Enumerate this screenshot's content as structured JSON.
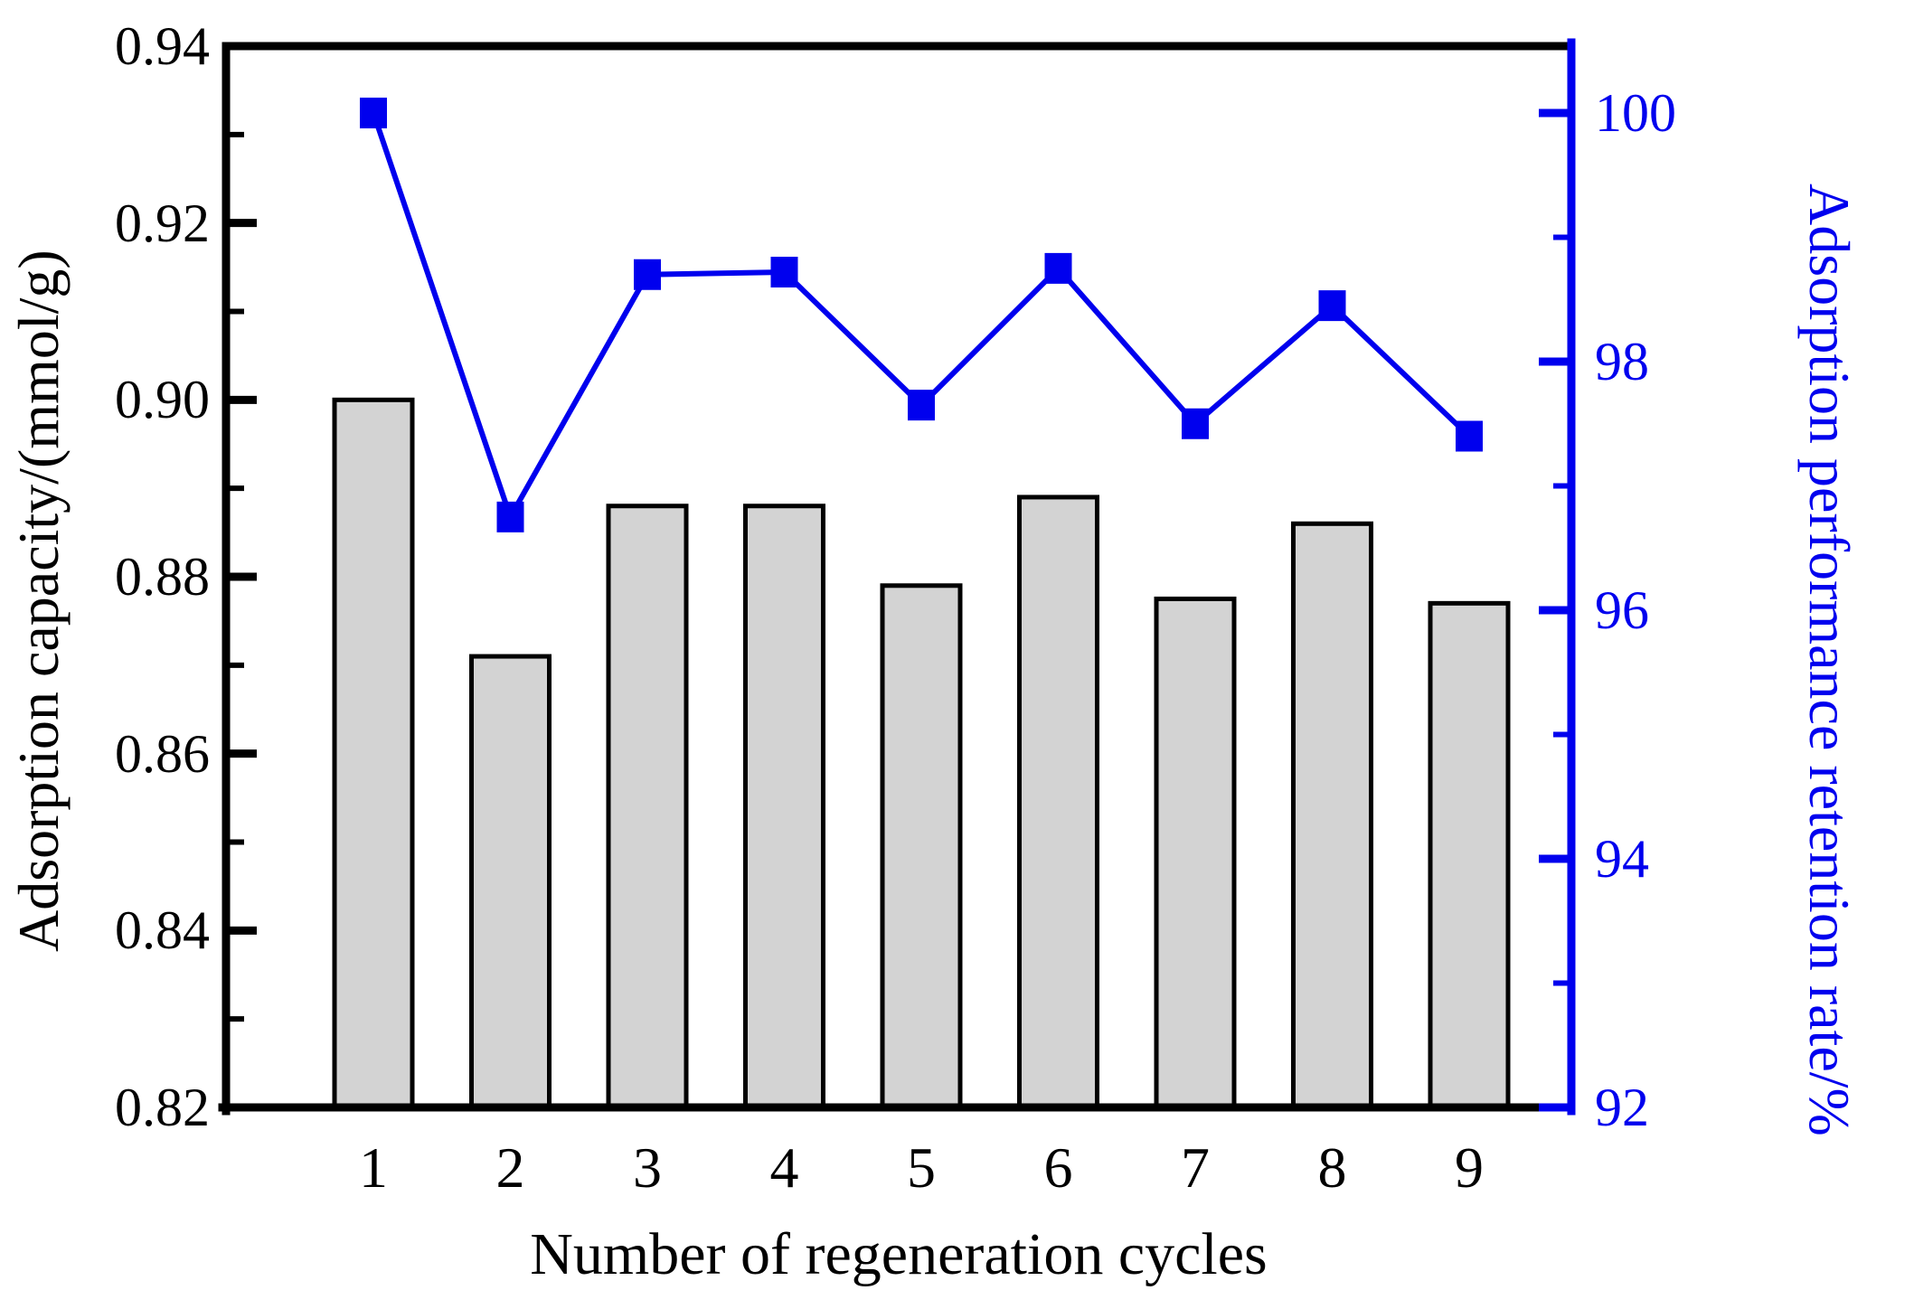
{
  "chart_data": {
    "type": "bar",
    "subtype": "dual-axis-bar-line",
    "categories": [
      "1",
      "2",
      "3",
      "4",
      "5",
      "6",
      "7",
      "8",
      "9"
    ],
    "xlabel": "Number of regeneration cycles",
    "ylabel_left": "Adsorption capacity/(mmol/g)",
    "ylabel_right": "Adsorption performance retention rate/%",
    "ylim_left": [
      0.82,
      0.94
    ],
    "ylim_right": [
      92,
      100
    ],
    "ytick_labels_left": [
      "0.82",
      "0.84",
      "0.86",
      "0.88",
      "0.90",
      "0.92",
      "0.94"
    ],
    "ytick_values_left": [
      0.82,
      0.84,
      0.86,
      0.88,
      0.9,
      0.92,
      0.94
    ],
    "ytick_minor_left": [
      0.83,
      0.85,
      0.87,
      0.89,
      0.91,
      0.93
    ],
    "ytick_labels_right": [
      "92",
      "94",
      "96",
      "98",
      "100"
    ],
    "ytick_values_right": [
      92,
      94,
      96,
      98,
      100
    ],
    "ytick_minor_right": [
      93,
      95,
      97,
      99
    ],
    "grid": false,
    "legend": false,
    "series": [
      {
        "name": "Adsorption capacity",
        "type": "bar",
        "axis": "left",
        "values": [
          0.9,
          0.871,
          0.888,
          0.888,
          0.879,
          0.889,
          0.8775,
          0.886,
          0.877
        ],
        "fill": "#d3d3d3",
        "stroke": "#000000"
      },
      {
        "name": "Adsorption performance retention rate",
        "type": "line",
        "axis": "right",
        "marker": "square",
        "values": [
          100,
          96.75,
          98.7,
          98.72,
          97.65,
          98.75,
          97.5,
          98.45,
          97.4
        ],
        "color": "#0000ee"
      }
    ],
    "colors": {
      "accent_blue": "#0000ee",
      "bar_fill": "#d3d3d3",
      "axis_black": "#000000",
      "background": "#ffffff"
    }
  }
}
